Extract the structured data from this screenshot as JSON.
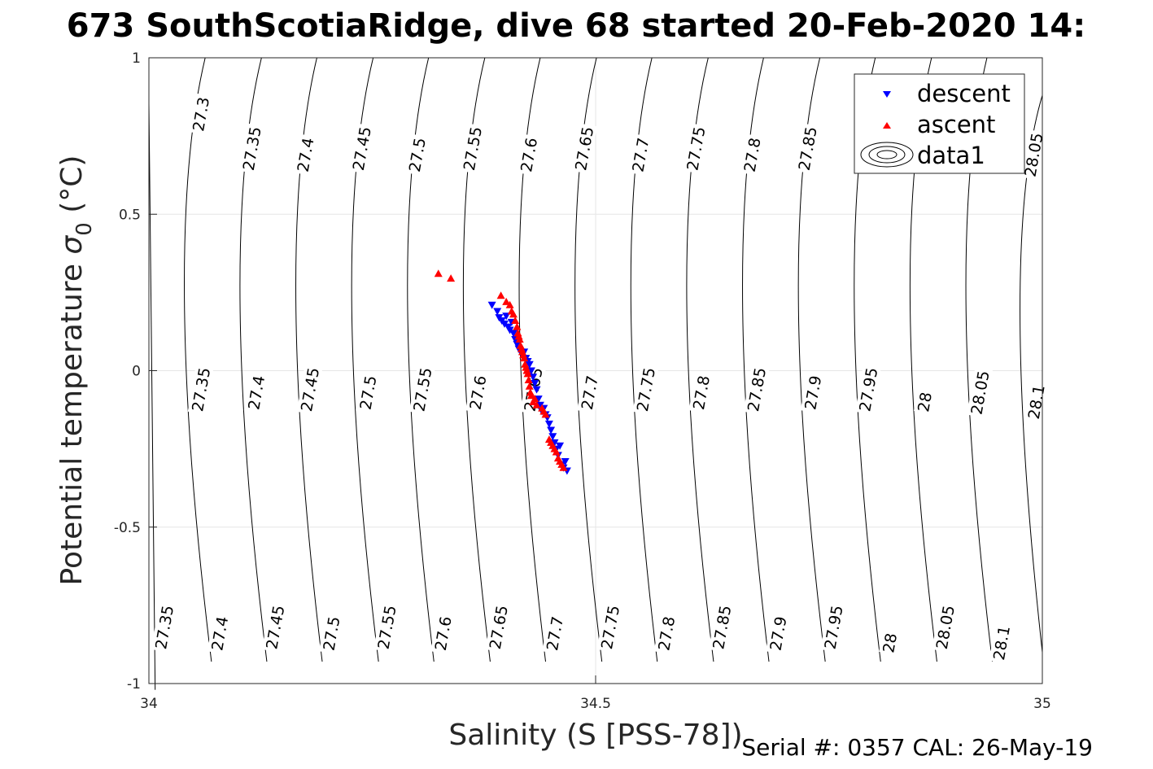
{
  "chart_data": {
    "type": "scatter",
    "title": "673 SouthScotiaRidge, dive 68 started 20-Feb-2020 14:",
    "xlabel": "Salinity (S [PSS-78])",
    "ylabel_main": "Potential temperature ",
    "ylabel_sigma": "σ",
    "ylabel_sub": "0",
    "ylabel_unit": " (°C)",
    "xlim": [
      34,
      35
    ],
    "ylim": [
      -1,
      1
    ],
    "xticks": [
      34,
      34.5,
      35
    ],
    "xtick_labels": [
      "34",
      "34.5",
      "35"
    ],
    "yticks": [
      -1,
      -0.5,
      0,
      0.5,
      1
    ],
    "ytick_labels": [
      "-1",
      "-0.5",
      "0",
      "0.5",
      "1"
    ],
    "grid": true,
    "legend_position": "top-right",
    "legend": [
      "descent",
      "ascent",
      "data1"
    ],
    "footer": "Serial #: 0357  CAL: 26-May-19",
    "series": [
      {
        "name": "descent",
        "marker": "triangle-down",
        "color": "#0000ff",
        "points": [
          [
            34.384,
            0.21
          ],
          [
            34.39,
            0.19
          ],
          [
            34.392,
            0.17
          ],
          [
            34.395,
            0.16
          ],
          [
            34.398,
            0.15
          ],
          [
            34.4,
            0.175
          ],
          [
            34.402,
            0.14
          ],
          [
            34.404,
            0.13
          ],
          [
            34.406,
            0.155
          ],
          [
            34.408,
            0.12
          ],
          [
            34.41,
            0.1
          ],
          [
            34.412,
            0.085
          ],
          [
            34.414,
            0.07
          ],
          [
            34.416,
            0.06
          ],
          [
            34.418,
            0.05
          ],
          [
            34.42,
            0.06
          ],
          [
            34.422,
            0.04
          ],
          [
            34.424,
            0.03
          ],
          [
            34.426,
            0.02
          ],
          [
            34.428,
            0.0
          ],
          [
            34.43,
            -0.02
          ],
          [
            34.432,
            -0.04
          ],
          [
            34.434,
            -0.06
          ],
          [
            34.436,
            -0.09
          ],
          [
            34.438,
            -0.11
          ],
          [
            34.44,
            -0.13
          ],
          [
            34.442,
            -0.12
          ],
          [
            34.444,
            -0.14
          ],
          [
            34.446,
            -0.15
          ],
          [
            34.448,
            -0.17
          ],
          [
            34.45,
            -0.19
          ],
          [
            34.452,
            -0.21
          ],
          [
            34.454,
            -0.23
          ],
          [
            34.456,
            -0.25
          ],
          [
            34.458,
            -0.27
          ],
          [
            34.46,
            -0.24
          ],
          [
            34.462,
            -0.3
          ],
          [
            34.464,
            -0.31
          ],
          [
            34.466,
            -0.29
          ],
          [
            34.468,
            -0.32
          ]
        ]
      },
      {
        "name": "ascent",
        "marker": "triangle-up",
        "color": "#ff0000",
        "points": [
          [
            34.324,
            0.31
          ],
          [
            34.338,
            0.295
          ],
          [
            34.394,
            0.24
          ],
          [
            34.4,
            0.22
          ],
          [
            34.404,
            0.21
          ],
          [
            34.406,
            0.19
          ],
          [
            34.408,
            0.18
          ],
          [
            34.41,
            0.16
          ],
          [
            34.412,
            0.14
          ],
          [
            34.413,
            0.12
          ],
          [
            34.414,
            0.11
          ],
          [
            34.415,
            0.1
          ],
          [
            34.416,
            0.08
          ],
          [
            34.417,
            0.07
          ],
          [
            34.418,
            0.06
          ],
          [
            34.419,
            0.05
          ],
          [
            34.42,
            0.04
          ],
          [
            34.421,
            0.02
          ],
          [
            34.422,
            0.01
          ],
          [
            34.423,
            0.0
          ],
          [
            34.424,
            -0.01
          ],
          [
            34.425,
            -0.03
          ],
          [
            34.426,
            -0.05
          ],
          [
            34.427,
            -0.07
          ],
          [
            34.428,
            -0.08
          ],
          [
            34.43,
            -0.1
          ],
          [
            34.432,
            -0.09
          ],
          [
            34.434,
            -0.11
          ],
          [
            34.44,
            -0.12
          ],
          [
            34.442,
            -0.13
          ],
          [
            34.444,
            -0.14
          ],
          [
            34.448,
            -0.22
          ],
          [
            34.45,
            -0.23
          ],
          [
            34.452,
            -0.24
          ],
          [
            34.454,
            -0.25
          ],
          [
            34.456,
            -0.26
          ],
          [
            34.458,
            -0.28
          ],
          [
            34.46,
            -0.29
          ],
          [
            34.462,
            -0.3
          ],
          [
            34.464,
            -0.31
          ]
        ]
      }
    ],
    "density_contours": {
      "color": "#000000",
      "lines": [
        {
          "top": [
            34.0,
            0.85
          ],
          "mid": [
            34.0,
            0.92
          ],
          "bottom": [
            34.007,
            -1.02
          ]
        },
        {
          "top": [
            34.063,
            1.0
          ],
          "mid": [
            34.013,
            0.4
          ],
          "bottom": [
            34.07,
            -0.93
          ]
        },
        {
          "top": [
            34.126,
            1.0
          ],
          "mid": [
            34.075,
            0.4
          ],
          "bottom": [
            34.132,
            -0.93
          ]
        },
        {
          "top": [
            34.188,
            1.0
          ],
          "mid": [
            34.138,
            0.4
          ],
          "bottom": [
            34.194,
            -0.93
          ]
        },
        {
          "top": [
            34.251,
            1.0
          ],
          "mid": [
            34.2,
            0.4
          ],
          "bottom": [
            34.257,
            -0.93
          ]
        },
        {
          "top": [
            34.313,
            1.0
          ],
          "mid": [
            34.263,
            0.4
          ],
          "bottom": [
            34.319,
            -0.93
          ]
        },
        {
          "top": [
            34.376,
            1.0
          ],
          "mid": [
            34.325,
            0.4
          ],
          "bottom": [
            34.382,
            -0.93
          ]
        },
        {
          "top": [
            34.438,
            1.0
          ],
          "mid": [
            34.388,
            0.4
          ],
          "bottom": [
            34.444,
            -0.93
          ]
        },
        {
          "top": [
            34.501,
            1.0
          ],
          "mid": [
            34.45,
            0.4
          ],
          "bottom": [
            34.507,
            -0.93
          ]
        },
        {
          "top": [
            34.563,
            1.0
          ],
          "mid": [
            34.513,
            0.4
          ],
          "bottom": [
            34.569,
            -0.93
          ]
        },
        {
          "top": [
            34.626,
            1.0
          ],
          "mid": [
            34.575,
            0.4
          ],
          "bottom": [
            34.632,
            -0.93
          ]
        },
        {
          "top": [
            34.688,
            1.0
          ],
          "mid": [
            34.638,
            0.4
          ],
          "bottom": [
            34.694,
            -0.93
          ]
        },
        {
          "top": [
            34.751,
            1.0
          ],
          "mid": [
            34.7,
            0.4
          ],
          "bottom": [
            34.757,
            -0.93
          ]
        },
        {
          "top": [
            34.813,
            1.0
          ],
          "mid": [
            34.763,
            0.4
          ],
          "bottom": [
            34.819,
            -0.93
          ]
        },
        {
          "top": [
            34.876,
            1.0
          ],
          "mid": [
            34.825,
            0.4
          ],
          "bottom": [
            34.882,
            -0.93
          ]
        },
        {
          "top": [
            34.938,
            1.0
          ],
          "mid": [
            34.888,
            0.4
          ],
          "bottom": [
            34.944,
            -0.93
          ]
        },
        {
          "top": [
            35.0,
            0.88
          ],
          "mid": [
            34.95,
            0.4
          ],
          "bottom": [
            35.0,
            -0.9
          ]
        }
      ],
      "labels": [
        {
          "text": "27.3",
          "s": 34.058,
          "t": 0.82
        },
        {
          "text": "27.35",
          "s": 34.115,
          "t": 0.71
        },
        {
          "text": "27.4",
          "s": 34.175,
          "t": 0.69
        },
        {
          "text": "27.45",
          "s": 34.238,
          "t": 0.71
        },
        {
          "text": "27.5",
          "s": 34.3,
          "t": 0.69
        },
        {
          "text": "27.55",
          "s": 34.362,
          "t": 0.71
        },
        {
          "text": "27.6",
          "s": 34.425,
          "t": 0.69
        },
        {
          "text": "27.65",
          "s": 34.487,
          "t": 0.71
        },
        {
          "text": "27.7",
          "s": 34.55,
          "t": 0.69
        },
        {
          "text": "27.75",
          "s": 34.612,
          "t": 0.71
        },
        {
          "text": "27.8",
          "s": 34.675,
          "t": 0.69
        },
        {
          "text": "27.85",
          "s": 34.737,
          "t": 0.71
        },
        {
          "text": "28.05",
          "s": 34.99,
          "t": 0.69
        },
        {
          "text": "27.35",
          "s": 34.058,
          "t": -0.06
        },
        {
          "text": "27.4",
          "s": 34.12,
          "t": -0.07
        },
        {
          "text": "27.45",
          "s": 34.18,
          "t": -0.06
        },
        {
          "text": "27.5",
          "s": 34.245,
          "t": -0.07
        },
        {
          "text": "27.55",
          "s": 34.306,
          "t": -0.06
        },
        {
          "text": "27.6",
          "s": 34.368,
          "t": -0.07
        },
        {
          "text": "27.65",
          "s": 34.43,
          "t": -0.06
        },
        {
          "text": "27.7",
          "s": 34.493,
          "t": -0.07
        },
        {
          "text": "27.75",
          "s": 34.556,
          "t": -0.06
        },
        {
          "text": "27.8",
          "s": 34.618,
          "t": -0.07
        },
        {
          "text": "27.85",
          "s": 34.68,
          "t": -0.06
        },
        {
          "text": "27.9",
          "s": 34.743,
          "t": -0.07
        },
        {
          "text": "27.95",
          "s": 34.805,
          "t": -0.06
        },
        {
          "text": "28",
          "s": 34.868,
          "t": -0.1
        },
        {
          "text": "28.05",
          "s": 34.93,
          "t": -0.07
        },
        {
          "text": "28.1",
          "s": 34.993,
          "t": -0.1
        },
        {
          "text": "27.35",
          "s": 34.017,
          "t": -0.82
        },
        {
          "text": "27.4",
          "s": 34.079,
          "t": -0.84
        },
        {
          "text": "27.45",
          "s": 34.141,
          "t": -0.82
        },
        {
          "text": "27.5",
          "s": 34.204,
          "t": -0.84
        },
        {
          "text": "27.55",
          "s": 34.266,
          "t": -0.82
        },
        {
          "text": "27.6",
          "s": 34.329,
          "t": -0.84
        },
        {
          "text": "27.65",
          "s": 34.391,
          "t": -0.82
        },
        {
          "text": "27.7",
          "s": 34.454,
          "t": -0.84
        },
        {
          "text": "27.75",
          "s": 34.516,
          "t": -0.82
        },
        {
          "text": "27.8",
          "s": 34.579,
          "t": -0.84
        },
        {
          "text": "27.85",
          "s": 34.641,
          "t": -0.82
        },
        {
          "text": "27.9",
          "s": 34.704,
          "t": -0.84
        },
        {
          "text": "27.95",
          "s": 34.766,
          "t": -0.82
        },
        {
          "text": "28",
          "s": 34.829,
          "t": -0.87
        },
        {
          "text": "28.05",
          "s": 34.891,
          "t": -0.82
        },
        {
          "text": "28.1",
          "s": 34.954,
          "t": -0.87
        }
      ]
    }
  }
}
